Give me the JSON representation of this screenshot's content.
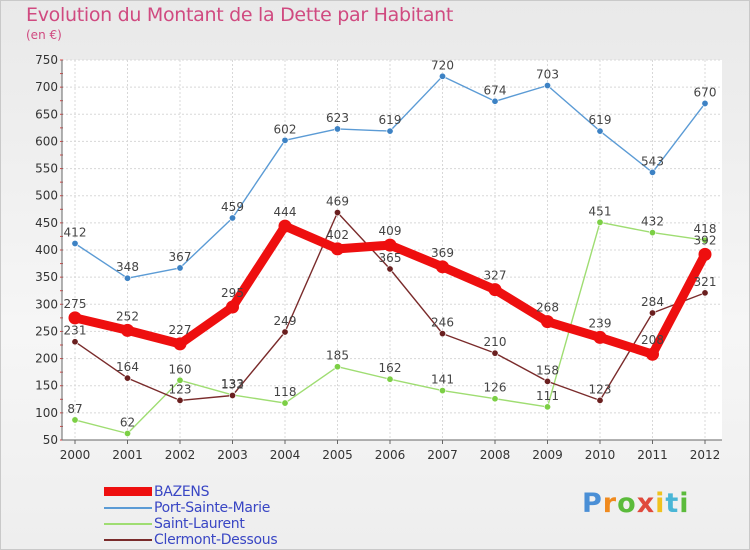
{
  "header": {
    "title": "Evolution du Montant de la Dette par Habitant",
    "subtitle": "(en €)"
  },
  "logo": {
    "text": "Proxiti",
    "letter_colors": [
      "#4a8fd6",
      "#f08a1e",
      "#5bbb3b",
      "#e04a3c",
      "#f0c21e",
      "#4ab6d6",
      "#5bbb3b"
    ]
  },
  "chart_data": {
    "type": "line",
    "title": "Evolution du Montant de la Dette par Habitant",
    "subtitle": "(en €)",
    "xlabel": "",
    "ylabel": "",
    "x": [
      "2000",
      "2001",
      "2002",
      "2003",
      "2004",
      "2005",
      "2006",
      "2007",
      "2008",
      "2009",
      "2010",
      "2011",
      "2012"
    ],
    "ylim": [
      50,
      750
    ],
    "yticks": [
      50,
      100,
      150,
      200,
      250,
      300,
      350,
      400,
      450,
      500,
      550,
      600,
      650,
      700,
      750
    ],
    "grid": true,
    "legend_position": "bottom-left",
    "series": [
      {
        "name": "Port-Sainte-Marie",
        "color": "#5b9bd5",
        "point_color": "#3d82c4",
        "emphasis": false,
        "values": [
          412,
          348,
          367,
          459,
          602,
          623,
          619,
          720,
          674,
          703,
          619,
          543,
          670
        ]
      },
      {
        "name": "Saint-Laurent",
        "color": "#9fdd72",
        "point_color": "#7ccf45",
        "emphasis": false,
        "values": [
          87,
          62,
          160,
          133,
          118,
          185,
          162,
          141,
          126,
          111,
          451,
          432,
          418
        ]
      },
      {
        "name": "Clermont-Dessous",
        "color": "#7a2b2b",
        "point_color": "#6a1f1f",
        "emphasis": false,
        "values": [
          231,
          164,
          123,
          132,
          249,
          469,
          365,
          246,
          210,
          158,
          123,
          284,
          321
        ]
      },
      {
        "name": "BAZENS",
        "color": "#ee0f0f",
        "point_color": "#ee0f0f",
        "emphasis": true,
        "values": [
          275,
          252,
          227,
          295,
          444,
          402,
          409,
          369,
          327,
          268,
          239,
          208,
          392
        ]
      }
    ],
    "legend_order": [
      "BAZENS",
      "Port-Sainte-Marie",
      "Saint-Laurent",
      "Clermont-Dessous"
    ]
  }
}
